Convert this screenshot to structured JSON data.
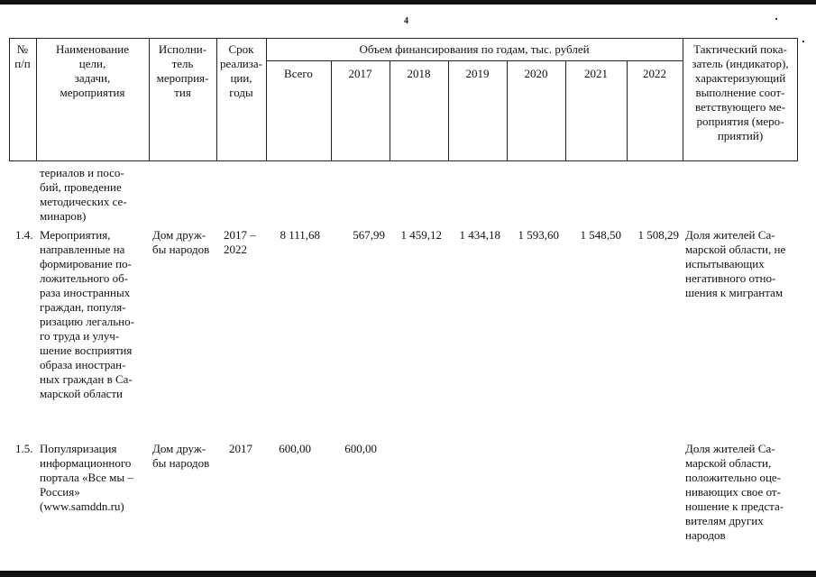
{
  "page_number": "4",
  "header": {
    "num": "№\nп/п",
    "name": "Наименование\nцели,\nзадачи,\nмероприятия",
    "executor": "Исполни-\nтель\nмероприя-\nтия",
    "term": "Срок\nреализа-\nции,\nгоды",
    "funding": "Объем финансирования по годам, тыс. рублей",
    "total": "Всего",
    "years": [
      "2017",
      "2018",
      "2019",
      "2020",
      "2021",
      "2022"
    ],
    "indicator": "Тактический пока-\nзатель (индикатор),\nхарактеризующий\nвыполнение соот-\nветствующего ме-\nроприятия (меро-\nприятий)"
  },
  "continuation": "териалов и посо-\nбий, проведение\nметодических се-\nминаров)",
  "rows": [
    {
      "num": "1.4.",
      "name": "Мероприятия,\nнаправленные на\nформирование по-\nложительного об-\nраза иностранных\nграждан, популя-\nризацию легально-\nго труда и улуч-\nшение восприятия\nобраза иностран-\nных граждан в Са-\nмарской области",
      "executor": "Дом друж-\nбы народов",
      "term": "2017 –\n2022",
      "total": "8 111,68",
      "values": [
        "567,99",
        "1 459,12",
        "1 434,18",
        "1 593,60",
        "1 548,50",
        "1 508,29"
      ],
      "indicator": "Доля жителей Са-\nмарской области, не\nиспытывающих\nнегативного отно-\nшения к мигрантам"
    },
    {
      "num": "1.5.",
      "name": "Популяризация\nинформационного\nпортала «Все мы –\nРоссия»\n(www.samddn.ru)",
      "executor": "Дом друж-\nбы народов",
      "term": "2017",
      "total": "600,00",
      "values": [
        "600,00",
        "",
        "",
        "",
        "",
        ""
      ],
      "indicator": "Доля жителей Са-\nмарской области,\nположительно оце-\nнивающих свое от-\nношение к предста-\nвителям других\nнародов"
    }
  ]
}
